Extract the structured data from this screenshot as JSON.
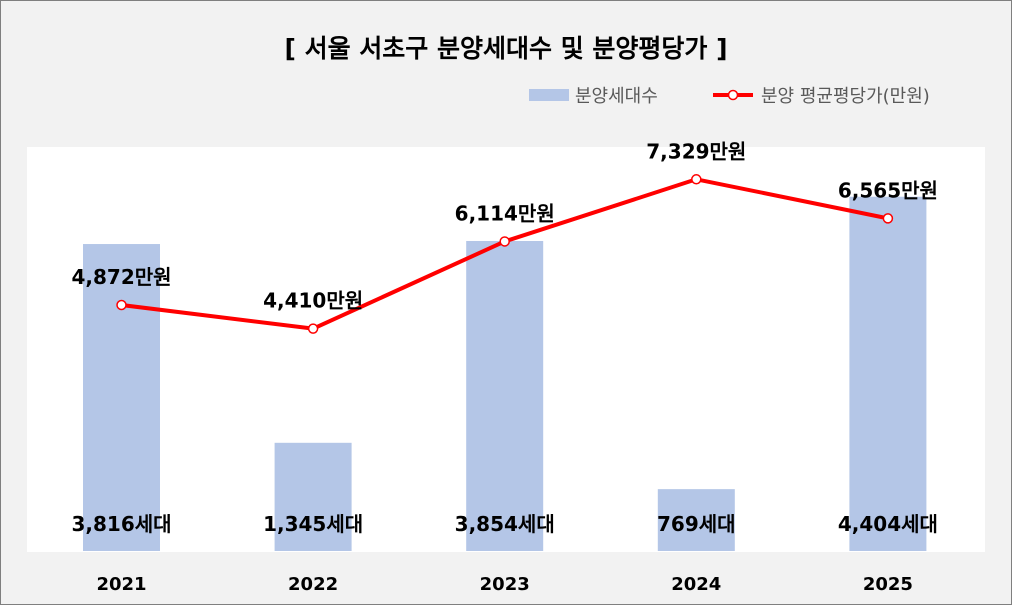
{
  "chart_data": {
    "type": "bar+line",
    "title": "[ 서울 서초구 분양세대수 및 분양평당가 ]",
    "categories": [
      "2021",
      "2022",
      "2023",
      "2024",
      "2025"
    ],
    "series": [
      {
        "name": "분양세대수",
        "type": "bar",
        "values": [
          3816,
          1345,
          3854,
          769,
          4404
        ],
        "labels": [
          "3,816세대",
          "1,345세대",
          "3,854세대",
          "769세대",
          "4,404세대"
        ],
        "color": "#b4c6e7"
      },
      {
        "name": "분양 평균평당가(만원)",
        "type": "line",
        "values": [
          4872,
          4410,
          6114,
          7329,
          6565
        ],
        "labels": [
          "4,872만원",
          "4,410만원",
          "6,114만원",
          "7,329만원",
          "6,565만원"
        ],
        "color": "#ff0000"
      }
    ],
    "legend": "top-right",
    "grid": false
  }
}
